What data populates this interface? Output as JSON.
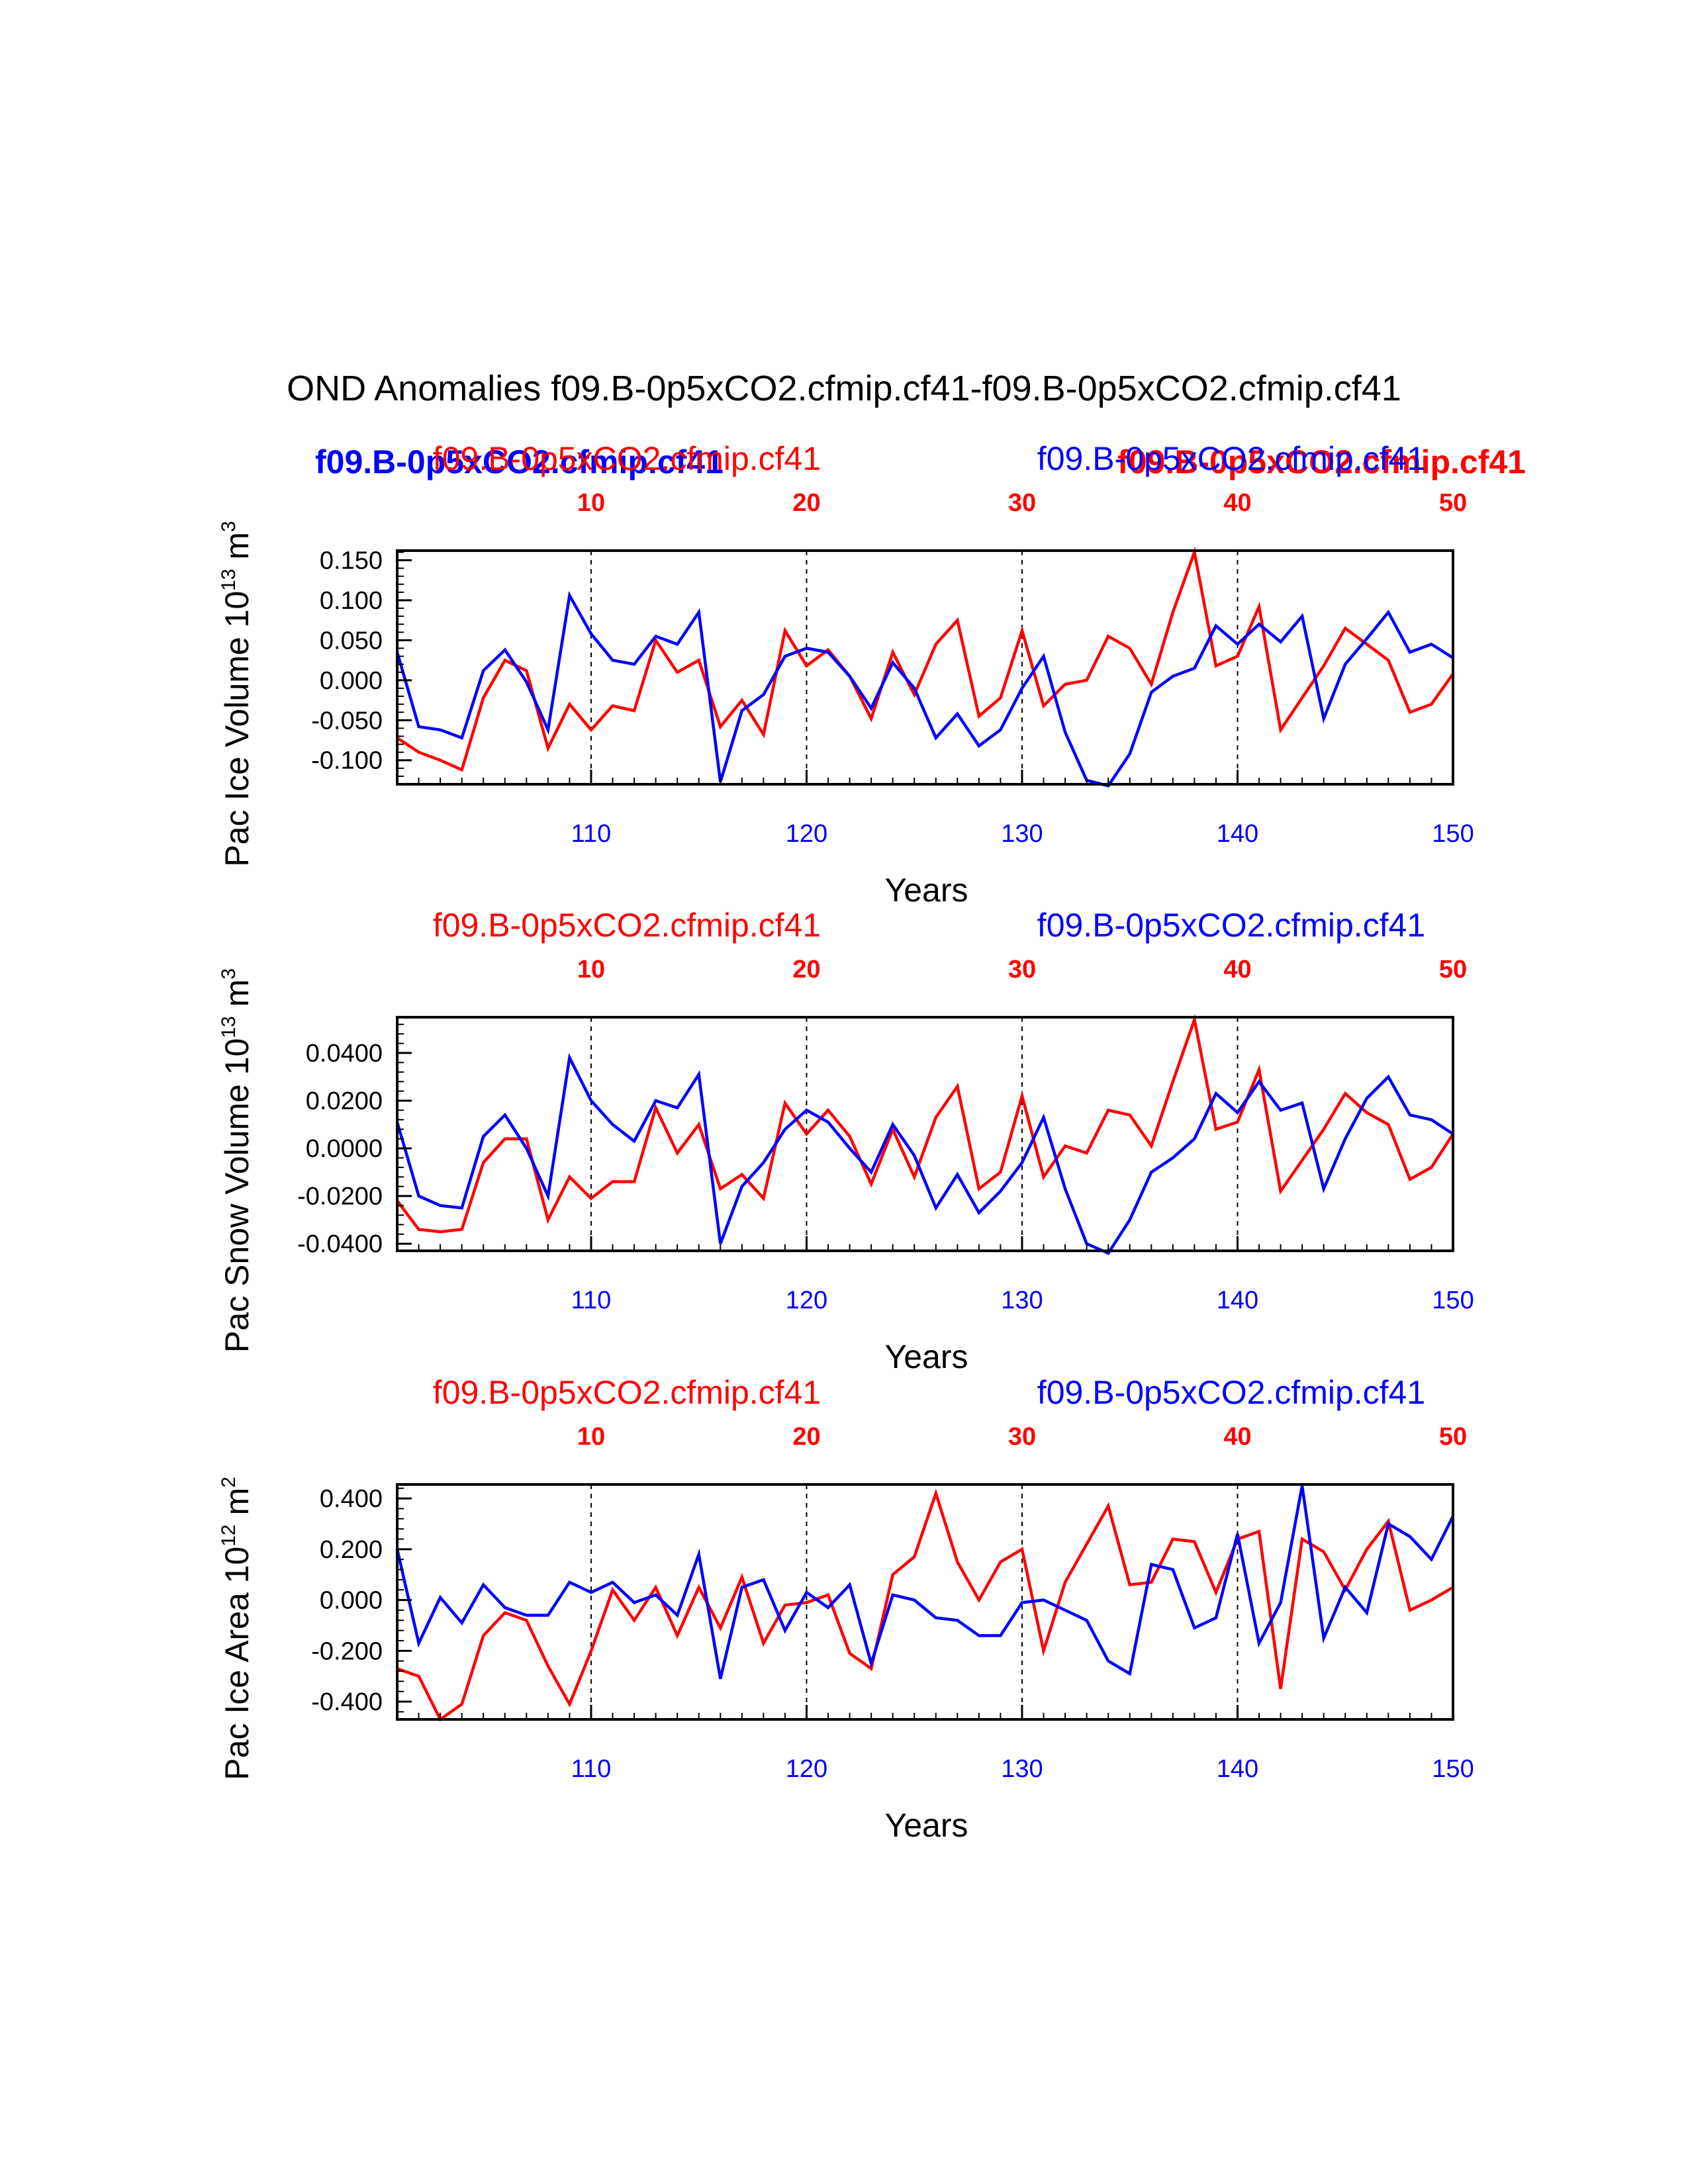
{
  "title": "OND Anomalies f09.B-0p5xCO2.cfmip.cf41-f09.B-0p5xCO2.cfmip.cf41",
  "colors": {
    "red": "#ff0000",
    "blue": "#0000ff",
    "axis": "#000000"
  },
  "legend": {
    "left_label": "f09.B-0p5xCO2.cfmip.cf41",
    "right_label": "f09.B-0p5xCO2.cfmip.cf41"
  },
  "chart_data": [
    {
      "type": "line",
      "ylabel_main": "Pac Ice Volume 10",
      "ylabel_exp": "13",
      "ylabel_unit": " m",
      "ylabel_unit_exp": "3",
      "xlabel": "Years",
      "title_left": "f09.B-0p5xCO2.cfmip.cf41",
      "title_right": "f09.B-0p5xCO2.cfmip.cf41",
      "ylim": [
        -0.13,
        0.162
      ],
      "yticks": [
        -0.1,
        -0.05,
        0.0,
        0.05,
        0.1,
        0.15
      ],
      "ytick_labels": [
        "-0.100",
        "-0.050",
        "0.000",
        "0.050",
        "0.100",
        "0.150"
      ],
      "bottom_axis": {
        "range": [
          101,
          150
        ],
        "ticks": [
          110,
          120,
          130,
          140,
          150
        ],
        "labels": [
          "110",
          "120",
          "130",
          "140",
          "150"
        ]
      },
      "top_axis": {
        "range": [
          1,
          50
        ],
        "ticks": [
          10,
          20,
          30,
          40,
          50
        ],
        "labels": [
          "10",
          "20",
          "30",
          "40",
          "50"
        ]
      },
      "series": [
        {
          "name": "f09.B-0p5xCO2.cfmip.cf41",
          "color": "#0000ff",
          "x_start": 101,
          "values": [
            0.035,
            -0.058,
            -0.062,
            -0.072,
            0.012,
            0.038,
            -0.002,
            -0.062,
            0.106,
            0.058,
            0.025,
            0.02,
            0.055,
            0.045,
            0.085,
            -0.127,
            -0.038,
            -0.018,
            0.03,
            0.04,
            0.035,
            0.005,
            -0.035,
            0.022,
            -0.01,
            -0.072,
            -0.042,
            -0.082,
            -0.062,
            -0.01,
            0.03,
            -0.065,
            -0.125,
            -0.132,
            -0.092,
            -0.015,
            0.005,
            0.015,
            0.068,
            0.045,
            0.07,
            0.048,
            0.08,
            -0.048,
            0.02,
            0.052,
            0.085,
            0.035,
            0.045,
            0.028
          ]
        },
        {
          "name": "f09.B-0p5xCO2.cfmip.cf41",
          "color": "#ff0000",
          "x_start": 101,
          "values": [
            -0.072,
            -0.09,
            -0.1,
            -0.112,
            -0.022,
            0.025,
            0.012,
            -0.085,
            -0.03,
            -0.062,
            -0.032,
            -0.038,
            0.05,
            0.01,
            0.025,
            -0.058,
            -0.025,
            -0.068,
            0.062,
            0.018,
            0.038,
            0.005,
            -0.048,
            0.035,
            -0.018,
            0.045,
            0.075,
            -0.045,
            -0.022,
            0.062,
            -0.032,
            -0.005,
            0.0,
            0.055,
            0.04,
            -0.005,
            0.085,
            0.16,
            0.018,
            0.03,
            0.092,
            -0.062,
            -0.022,
            0.018,
            0.065,
            0.045,
            0.025,
            -0.04,
            -0.03,
            0.008
          ]
        }
      ]
    },
    {
      "type": "line",
      "ylabel_main": "Pac Snow Volume 10",
      "ylabel_exp": "13",
      "ylabel_unit": " m",
      "ylabel_unit_exp": "3",
      "xlabel": "Years",
      "title_left": "f09.B-0p5xCO2.cfmip.cf41",
      "title_right": "f09.B-0p5xCO2.cfmip.cf41",
      "ylim": [
        -0.043,
        0.055
      ],
      "yticks": [
        -0.04,
        -0.02,
        0.0,
        0.02,
        0.04
      ],
      "ytick_labels": [
        "-0.0400",
        "-0.0200",
        "0.0000",
        "0.0200",
        "0.0400"
      ],
      "bottom_axis": {
        "range": [
          101,
          150
        ],
        "ticks": [
          110,
          120,
          130,
          140,
          150
        ],
        "labels": [
          "110",
          "120",
          "130",
          "140",
          "150"
        ]
      },
      "top_axis": {
        "range": [
          1,
          50
        ],
        "ticks": [
          10,
          20,
          30,
          40,
          50
        ],
        "labels": [
          "10",
          "20",
          "30",
          "40",
          "50"
        ]
      },
      "series": [
        {
          "name": "f09.B-0p5xCO2.cfmip.cf41",
          "color": "#0000ff",
          "x_start": 101,
          "values": [
            0.011,
            -0.02,
            -0.024,
            -0.025,
            0.005,
            0.014,
            0.0,
            -0.02,
            0.038,
            0.02,
            0.01,
            0.003,
            0.02,
            0.017,
            0.031,
            -0.04,
            -0.016,
            -0.006,
            0.008,
            0.016,
            0.011,
            0.0,
            -0.01,
            0.01,
            -0.003,
            -0.025,
            -0.011,
            -0.027,
            -0.018,
            -0.006,
            0.013,
            -0.017,
            -0.04,
            -0.044,
            -0.03,
            -0.01,
            -0.004,
            0.004,
            0.023,
            0.015,
            0.028,
            0.016,
            0.019,
            -0.017,
            0.004,
            0.021,
            0.03,
            0.014,
            0.012,
            0.006
          ]
        },
        {
          "name": "f09.B-0p5xCO2.cfmip.cf41",
          "color": "#ff0000",
          "x_start": 101,
          "values": [
            -0.022,
            -0.034,
            -0.035,
            -0.034,
            -0.006,
            0.004,
            0.004,
            -0.03,
            -0.012,
            -0.021,
            -0.014,
            -0.014,
            0.017,
            -0.002,
            0.01,
            -0.017,
            -0.011,
            -0.021,
            0.019,
            0.006,
            0.016,
            0.005,
            -0.015,
            0.008,
            -0.012,
            0.013,
            0.026,
            -0.017,
            -0.01,
            0.022,
            -0.012,
            0.001,
            -0.002,
            0.016,
            0.014,
            0.001,
            0.028,
            0.054,
            0.008,
            0.011,
            0.033,
            -0.018,
            -0.005,
            0.008,
            0.023,
            0.015,
            0.01,
            -0.013,
            -0.008,
            0.006
          ]
        }
      ]
    },
    {
      "type": "line",
      "ylabel_main": "Pac Ice Area 10",
      "ylabel_exp": "12",
      "ylabel_unit": " m",
      "ylabel_unit_exp": "2",
      "xlabel": "Years",
      "title_left": "f09.B-0p5xCO2.cfmip.cf41",
      "title_right": "f09.B-0p5xCO2.cfmip.cf41",
      "ylim": [
        -0.47,
        0.455
      ],
      "yticks": [
        -0.4,
        -0.2,
        0.0,
        0.2,
        0.4
      ],
      "ytick_labels": [
        "-0.400",
        "-0.200",
        "0.000",
        "0.200",
        "0.400"
      ],
      "bottom_axis": {
        "range": [
          101,
          150
        ],
        "ticks": [
          110,
          120,
          130,
          140,
          150
        ],
        "labels": [
          "110",
          "120",
          "130",
          "140",
          "150"
        ]
      },
      "top_axis": {
        "range": [
          1,
          50
        ],
        "ticks": [
          10,
          20,
          30,
          40,
          50
        ],
        "labels": [
          "10",
          "20",
          "30",
          "40",
          "50"
        ]
      },
      "series": [
        {
          "name": "f09.B-0p5xCO2.cfmip.cf41",
          "color": "#0000ff",
          "x_start": 101,
          "values": [
            0.2,
            -0.17,
            0.01,
            -0.09,
            0.06,
            -0.03,
            -0.06,
            -0.06,
            0.07,
            0.03,
            0.07,
            -0.01,
            0.02,
            -0.06,
            0.18,
            -0.31,
            0.05,
            0.08,
            -0.12,
            0.03,
            -0.03,
            0.06,
            -0.25,
            0.02,
            0.0,
            -0.07,
            -0.08,
            -0.14,
            -0.14,
            -0.01,
            0.0,
            -0.04,
            -0.08,
            -0.24,
            -0.29,
            0.14,
            0.12,
            -0.11,
            -0.07,
            0.26,
            -0.17,
            -0.01,
            0.45,
            -0.15,
            0.05,
            -0.05,
            0.3,
            0.25,
            0.16,
            0.33
          ]
        },
        {
          "name": "f09.B-0p5xCO2.cfmip.cf41",
          "color": "#ff0000",
          "x_start": 101,
          "values": [
            -0.27,
            -0.3,
            -0.47,
            -0.41,
            -0.14,
            -0.05,
            -0.08,
            -0.26,
            -0.41,
            -0.2,
            0.04,
            -0.08,
            0.05,
            -0.14,
            0.05,
            -0.11,
            0.09,
            -0.17,
            -0.02,
            -0.01,
            0.02,
            -0.21,
            -0.27,
            0.1,
            0.17,
            0.42,
            0.15,
            0.0,
            0.15,
            0.2,
            -0.2,
            0.07,
            0.22,
            0.37,
            0.06,
            0.07,
            0.24,
            0.23,
            0.03,
            0.24,
            0.27,
            -0.35,
            0.24,
            0.19,
            0.04,
            0.2,
            0.31,
            -0.04,
            0.0,
            0.05
          ]
        }
      ]
    }
  ]
}
